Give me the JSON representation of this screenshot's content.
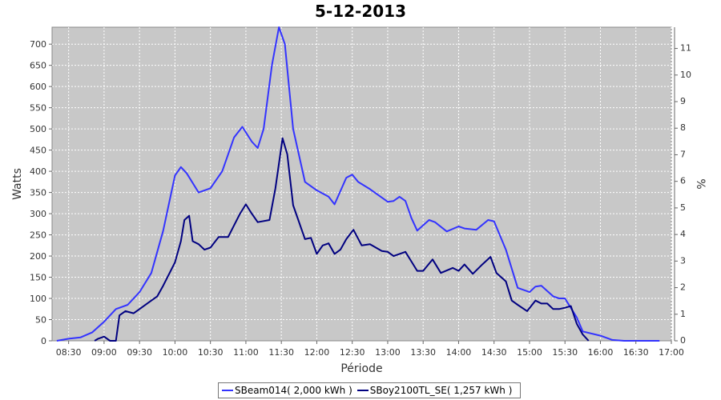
{
  "chart_data": {
    "type": "line",
    "title": "5-12-2013",
    "xlabel": "Période",
    "ylabel": "Watts",
    "y2label": "%",
    "ylim": [
      0,
      740
    ],
    "y2lim": [
      0,
      11.8
    ],
    "x_ticks": [
      "08:30",
      "09:00",
      "09:30",
      "10:00",
      "10:30",
      "11:00",
      "11:30",
      "12:00",
      "12:30",
      "13:00",
      "13:30",
      "14:00",
      "14:30",
      "15:00",
      "15:30",
      "16:00",
      "16:30",
      "17:00"
    ],
    "y_ticks": [
      0,
      50,
      100,
      150,
      200,
      250,
      300,
      350,
      400,
      450,
      500,
      550,
      600,
      650,
      700
    ],
    "y2_ticks": [
      0,
      1,
      2,
      3,
      4,
      5,
      6,
      7,
      8,
      9,
      10,
      11
    ],
    "grid": true,
    "legend_position": "bottom",
    "series": [
      {
        "name": "SBeam014( 2,000 kWh )",
        "color": "#3333ff",
        "points": [
          [
            "08:20",
            0
          ],
          [
            "08:30",
            5
          ],
          [
            "08:40",
            8
          ],
          [
            "08:50",
            20
          ],
          [
            "09:00",
            45
          ],
          [
            "09:10",
            75
          ],
          [
            "09:20",
            85
          ],
          [
            "09:30",
            115
          ],
          [
            "09:40",
            160
          ],
          [
            "09:50",
            260
          ],
          [
            "10:00",
            390
          ],
          [
            "10:05",
            410
          ],
          [
            "10:10",
            395
          ],
          [
            "10:20",
            350
          ],
          [
            "10:30",
            360
          ],
          [
            "10:40",
            400
          ],
          [
            "10:50",
            480
          ],
          [
            "10:57",
            505
          ],
          [
            "11:05",
            470
          ],
          [
            "11:10",
            455
          ],
          [
            "11:15",
            500
          ],
          [
            "11:22",
            650
          ],
          [
            "11:28",
            740
          ],
          [
            "11:33",
            700
          ],
          [
            "11:40",
            500
          ],
          [
            "11:50",
            375
          ],
          [
            "12:00",
            355
          ],
          [
            "12:10",
            340
          ],
          [
            "12:15",
            322
          ],
          [
            "12:25",
            385
          ],
          [
            "12:30",
            392
          ],
          [
            "12:35",
            375
          ],
          [
            "12:45",
            358
          ],
          [
            "13:00",
            328
          ],
          [
            "13:05",
            330
          ],
          [
            "13:10",
            340
          ],
          [
            "13:15",
            330
          ],
          [
            "13:20",
            290
          ],
          [
            "13:25",
            260
          ],
          [
            "13:35",
            285
          ],
          [
            "13:40",
            280
          ],
          [
            "13:50",
            258
          ],
          [
            "14:00",
            270
          ],
          [
            "14:05",
            265
          ],
          [
            "14:15",
            262
          ],
          [
            "14:25",
            285
          ],
          [
            "14:30",
            282
          ],
          [
            "14:40",
            215
          ],
          [
            "14:50",
            125
          ],
          [
            "15:00",
            115
          ],
          [
            "15:05",
            128
          ],
          [
            "15:10",
            130
          ],
          [
            "15:20",
            105
          ],
          [
            "15:25",
            100
          ],
          [
            "15:30",
            100
          ],
          [
            "15:40",
            55
          ],
          [
            "15:45",
            22
          ],
          [
            "16:00",
            12
          ],
          [
            "16:10",
            2
          ],
          [
            "16:20",
            0
          ],
          [
            "16:50",
            0
          ]
        ]
      },
      {
        "name": "SBoy2100TL_SE( 1,257 kWh )",
        "color": "#000080",
        "points": [
          [
            "08:52",
            0
          ],
          [
            "08:55",
            5
          ],
          [
            "09:00",
            10
          ],
          [
            "09:05",
            0
          ],
          [
            "09:10",
            0
          ],
          [
            "09:13",
            60
          ],
          [
            "09:18",
            70
          ],
          [
            "09:25",
            65
          ],
          [
            "09:30",
            75
          ],
          [
            "09:40",
            95
          ],
          [
            "09:45",
            105
          ],
          [
            "09:50",
            130
          ],
          [
            "10:00",
            185
          ],
          [
            "10:05",
            235
          ],
          [
            "10:08",
            285
          ],
          [
            "10:12",
            295
          ],
          [
            "10:15",
            235
          ],
          [
            "10:20",
            228
          ],
          [
            "10:25",
            215
          ],
          [
            "10:30",
            220
          ],
          [
            "10:37",
            245
          ],
          [
            "10:45",
            245
          ],
          [
            "10:55",
            300
          ],
          [
            "11:00",
            322
          ],
          [
            "11:05",
            300
          ],
          [
            "11:10",
            280
          ],
          [
            "11:20",
            285
          ],
          [
            "11:25",
            360
          ],
          [
            "11:31",
            478
          ],
          [
            "11:35",
            440
          ],
          [
            "11:40",
            320
          ],
          [
            "11:50",
            240
          ],
          [
            "11:55",
            243
          ],
          [
            "12:00",
            205
          ],
          [
            "12:05",
            225
          ],
          [
            "12:10",
            230
          ],
          [
            "12:15",
            205
          ],
          [
            "12:20",
            215
          ],
          [
            "12:25",
            240
          ],
          [
            "12:31",
            262
          ],
          [
            "12:38",
            225
          ],
          [
            "12:45",
            228
          ],
          [
            "12:55",
            212
          ],
          [
            "13:00",
            210
          ],
          [
            "13:05",
            200
          ],
          [
            "13:10",
            205
          ],
          [
            "13:15",
            210
          ],
          [
            "13:25",
            165
          ],
          [
            "13:30",
            165
          ],
          [
            "13:38",
            192
          ],
          [
            "13:45",
            160
          ],
          [
            "13:55",
            172
          ],
          [
            "14:00",
            165
          ],
          [
            "14:05",
            180
          ],
          [
            "14:12",
            158
          ],
          [
            "14:20",
            180
          ],
          [
            "14:27",
            198
          ],
          [
            "14:32",
            160
          ],
          [
            "14:40",
            140
          ],
          [
            "14:45",
            95
          ],
          [
            "14:50",
            85
          ],
          [
            "14:58",
            70
          ],
          [
            "15:05",
            95
          ],
          [
            "15:10",
            88
          ],
          [
            "15:15",
            88
          ],
          [
            "15:20",
            75
          ],
          [
            "15:25",
            75
          ],
          [
            "15:30",
            78
          ],
          [
            "15:35",
            82
          ],
          [
            "15:40",
            40
          ],
          [
            "15:45",
            15
          ],
          [
            "15:50",
            0
          ]
        ]
      }
    ]
  }
}
